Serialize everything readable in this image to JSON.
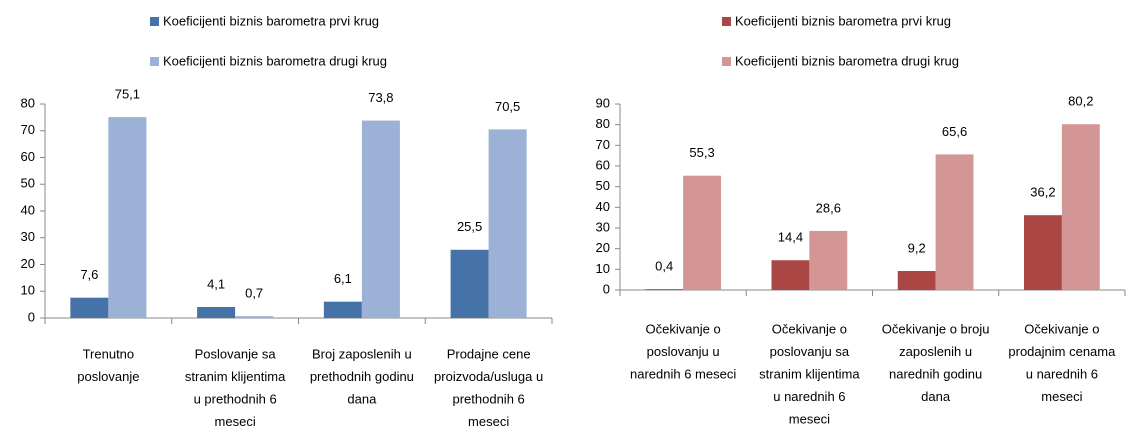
{
  "chart_data": [
    {
      "type": "bar",
      "categories": [
        [
          "Trenutno",
          "poslovanje"
        ],
        [
          "Poslovanje sa",
          "stranim klijentima",
          "u prethodnih 6",
          "meseci"
        ],
        [
          "Broj zaposlenih u",
          "prethodnih godinu",
          "dana"
        ],
        [
          "Prodajne cene",
          "proizvoda/usluga u",
          "prethodnih 6",
          "meseci"
        ]
      ],
      "series": [
        {
          "name": "Koeficijenti biznis barometra prvi krug",
          "color": "#4572a7",
          "values": [
            7.6,
            4.1,
            6.1,
            25.5
          ],
          "value_labels": [
            "7,6",
            "4,1",
            "6,1",
            "25,5"
          ]
        },
        {
          "name": "Koeficijenti biznis barometra drugi krug",
          "color": "#9bb1d6",
          "values": [
            75.1,
            0.7,
            73.8,
            70.5
          ],
          "value_labels": [
            "75,1",
            "0,7",
            "73,8",
            "70,5"
          ]
        }
      ],
      "ylim": [
        0,
        80
      ],
      "yticks": [
        0,
        10,
        20,
        30,
        40,
        50,
        60,
        70,
        80
      ]
    },
    {
      "type": "bar",
      "categories": [
        [
          "Očekivanje o",
          "poslovanju u",
          "narednih 6 meseci"
        ],
        [
          "Očekivanje o",
          "poslovanju sa",
          "stranim klijentima",
          "u narednih 6",
          "meseci"
        ],
        [
          "Očekivanje o broju",
          "zaposlenih u",
          "narednih godinu",
          "dana"
        ],
        [
          "Očekivanje o",
          "prodajnim cenama",
          "u narednih 6",
          "meseci"
        ]
      ],
      "series": [
        {
          "name": "Koeficijenti biznis barometra prvi krug",
          "color": "#aa4643",
          "values": [
            0.4,
            14.4,
            9.2,
            36.2
          ],
          "value_labels": [
            "0,4",
            "14,4",
            "9,2",
            "36,2"
          ]
        },
        {
          "name": "Koeficijenti biznis barometra drugi krug",
          "color": "#d49595",
          "values": [
            55.3,
            28.6,
            65.6,
            80.2
          ],
          "value_labels": [
            "55,3",
            "28,6",
            "65,6",
            "80,2"
          ]
        }
      ],
      "ylim": [
        0,
        90
      ],
      "yticks": [
        0,
        10,
        20,
        30,
        40,
        50,
        60,
        70,
        80,
        90
      ]
    }
  ]
}
